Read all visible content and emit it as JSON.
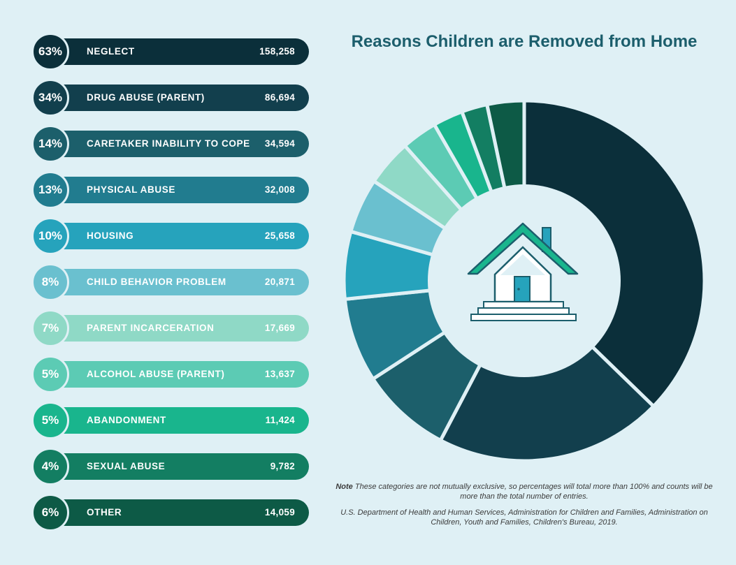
{
  "chart_data": {
    "type": "pie",
    "title": "Reasons Children are Removed from Home",
    "categories": [
      "NEGLECT",
      "DRUG ABUSE (PARENT)",
      "CARETAKER INABILITY TO COPE",
      "PHYSICAL ABUSE",
      "HOUSING",
      "CHILD BEHAVIOR PROBLEM",
      "PARENT INCARCERATION",
      "ALCOHOL ABUSE (PARENT)",
      "ABANDONMENT",
      "SEXUAL ABUSE",
      "OTHER"
    ],
    "percents": [
      "63%",
      "34%",
      "14%",
      "13%",
      "10%",
      "8%",
      "7%",
      "5%",
      "5%",
      "4%",
      "6%"
    ],
    "counts": [
      "158,258",
      "86,694",
      "34,594",
      "32,008",
      "25,658",
      "20,871",
      "17,669",
      "13,637",
      "11,424",
      "9,782",
      "14,059"
    ],
    "values": [
      158258,
      86694,
      34594,
      32008,
      25658,
      20871,
      17669,
      13637,
      11424,
      9782,
      14059
    ],
    "colors": [
      "#0b2f3a",
      "#123f4d",
      "#1c5f6b",
      "#217c8f",
      "#26a3bc",
      "#6ac0cf",
      "#8fd9c6",
      "#5ccbb4",
      "#19b58d",
      "#137e62",
      "#0d5a46"
    ]
  },
  "note": {
    "label": "Note",
    "text": "These categories are not mutually exclusive, so percentages will total more than 100% and counts will be more than the total number of entries."
  },
  "source": "U.S. Department of Health and Human Services, Administration for Children and Families, Administration on Children, Youth and Families, Children's Bureau, 2019."
}
